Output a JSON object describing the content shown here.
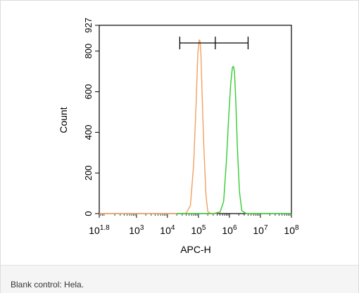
{
  "chart_data": {
    "type": "line",
    "title": "",
    "xlabel": "APC-H",
    "ylabel": "Count",
    "x_scale": "log",
    "xlim": [
      63.1,
      100000000
    ],
    "ylim": [
      0,
      927
    ],
    "y_ticks": [
      {
        "value": 0,
        "label": "0"
      },
      {
        "value": 200,
        "label": "200"
      },
      {
        "value": 400,
        "label": "400"
      },
      {
        "value": 600,
        "label": "600"
      },
      {
        "value": 800,
        "label": "800"
      },
      {
        "value": 927,
        "label": "927"
      }
    ],
    "x_ticks": [
      {
        "value": 63.1,
        "base": "10",
        "exp": "1.8"
      },
      {
        "value": 1000,
        "base": "10",
        "exp": "3"
      },
      {
        "value": 10000,
        "base": "10",
        "exp": "4"
      },
      {
        "value": 100000,
        "base": "10",
        "exp": "5"
      },
      {
        "value": 1000000,
        "base": "10",
        "exp": "6"
      },
      {
        "value": 10000000,
        "base": "10",
        "exp": "7"
      },
      {
        "value": 100000000,
        "base": "10",
        "exp": "8"
      }
    ],
    "grid": false,
    "series": [
      {
        "color": "#f0a060",
        "x": [
          63.1,
          20000,
          40000,
          55000,
          70000,
          85000,
          95000,
          105000,
          112000,
          120000,
          130000,
          150000,
          175000,
          200000,
          250000,
          400000
        ],
        "values": [
          0,
          0,
          2,
          40,
          240,
          560,
          780,
          855,
          850,
          790,
          610,
          320,
          90,
          10,
          0,
          0
        ]
      },
      {
        "color": "#33cc33",
        "x": [
          20000,
          100000,
          300000,
          500000,
          650000,
          800000,
          950000,
          1100000,
          1250000,
          1350000,
          1450000,
          1600000,
          1800000,
          2100000,
          2500000,
          3500000,
          100000000
        ],
        "values": [
          0,
          0,
          0,
          8,
          60,
          260,
          480,
          640,
          720,
          725,
          700,
          560,
          330,
          110,
          15,
          0,
          0
        ]
      }
    ],
    "gate": {
      "x_start": 25000,
      "x_mid": 350000,
      "x_end": 4000000,
      "y": 840
    }
  },
  "caption": "Blank control: Hela."
}
